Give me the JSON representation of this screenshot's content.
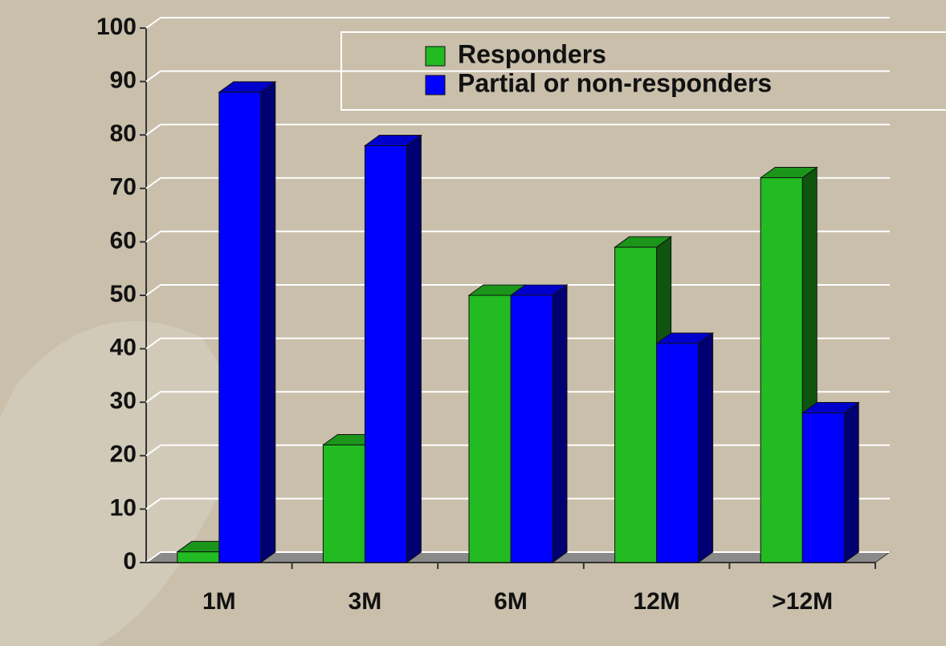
{
  "chart_data": {
    "type": "bar3d",
    "categories": [
      "1M",
      "3M",
      "6M",
      "12M",
      ">12M"
    ],
    "series": [
      {
        "name": "Responders",
        "color": "#22bb22",
        "values": [
          2,
          22,
          50,
          59,
          72
        ]
      },
      {
        "name": "Partial or non-responders",
        "color": "#0000ff",
        "values": [
          88,
          78,
          50,
          41,
          28
        ]
      }
    ],
    "ylim": [
      0,
      100
    ],
    "yticks": [
      0,
      10,
      20,
      30,
      40,
      50,
      60,
      70,
      80,
      90,
      100
    ],
    "grid": true,
    "legend": "top-right"
  }
}
